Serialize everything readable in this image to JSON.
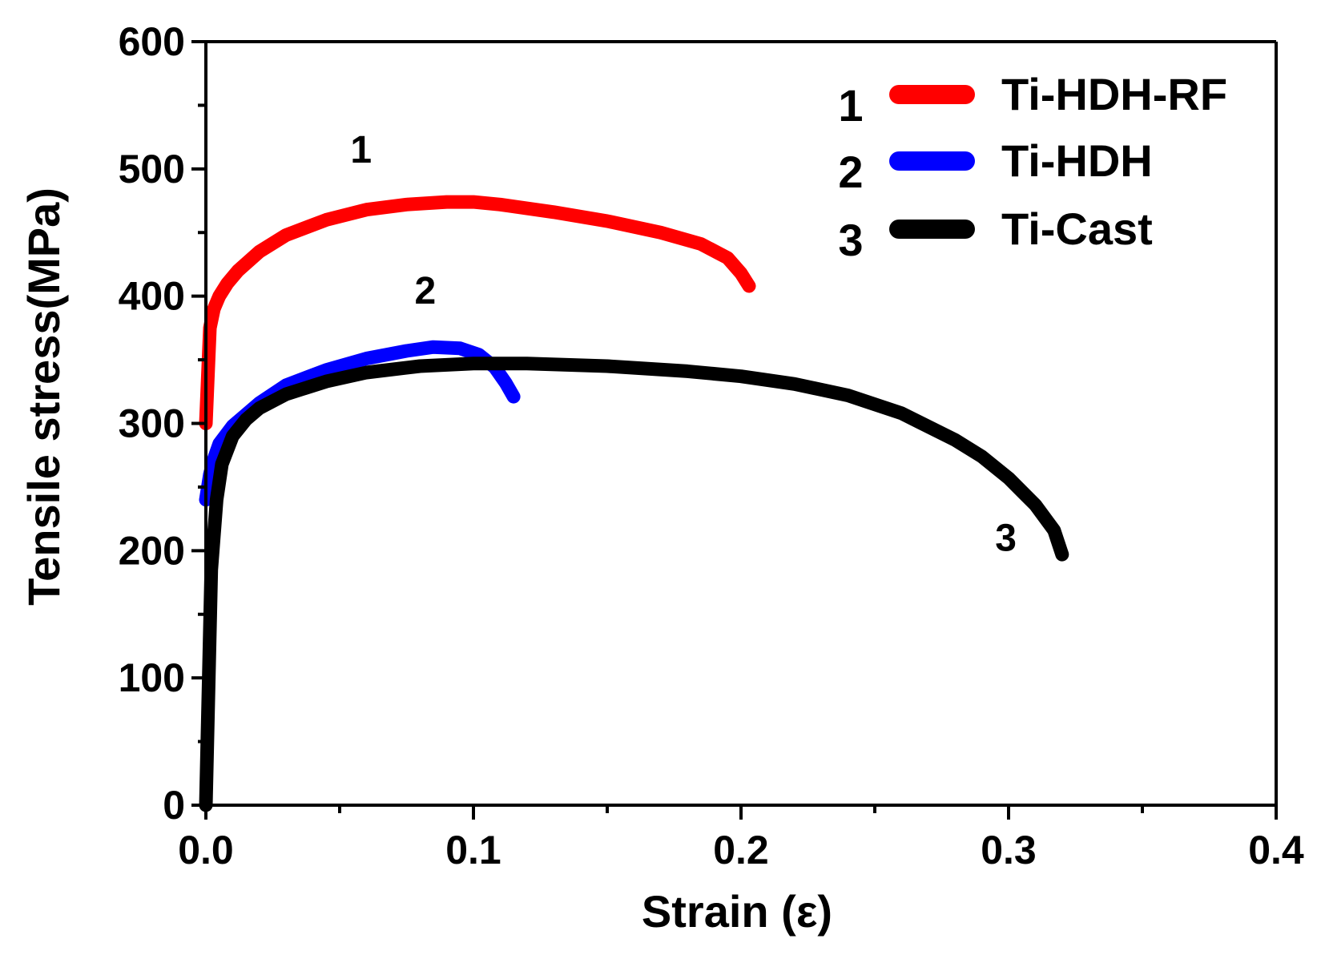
{
  "chart_data": {
    "type": "line",
    "title": "",
    "xlabel": "Strain (ε)",
    "ylabel": "Tensile stress(MPa)",
    "xlim": [
      0.0,
      0.4
    ],
    "ylim": [
      0,
      600
    ],
    "x_ticks": [
      0.0,
      0.1,
      0.2,
      0.3,
      0.4
    ],
    "x_tick_labels": [
      "0.0",
      "0.1",
      "0.2",
      "0.3",
      "0.4"
    ],
    "y_ticks": [
      0,
      100,
      200,
      300,
      400,
      500,
      600
    ],
    "y_tick_labels": [
      "0",
      "100",
      "200",
      "300",
      "400",
      "500",
      "600"
    ],
    "grid": false,
    "legend_position": "top-right",
    "series": [
      {
        "id": "1",
        "name": "Ti-HDH-RF",
        "color": "#ff0000",
        "x": [
          0.0,
          0.0015,
          0.003,
          0.005,
          0.008,
          0.012,
          0.02,
          0.03,
          0.045,
          0.06,
          0.075,
          0.09,
          0.1,
          0.11,
          0.13,
          0.15,
          0.17,
          0.185,
          0.195,
          0.2,
          0.203
        ],
        "y": [
          300,
          375,
          390,
          400,
          410,
          420,
          435,
          448,
          460,
          468,
          472,
          474,
          474,
          472,
          466,
          459,
          450,
          441,
          430,
          418,
          408
        ]
      },
      {
        "id": "2",
        "name": "Ti-HDH",
        "color": "#0000ff",
        "x": [
          0.0,
          0.0015,
          0.003,
          0.005,
          0.01,
          0.02,
          0.03,
          0.045,
          0.06,
          0.075,
          0.085,
          0.095,
          0.102,
          0.108,
          0.112,
          0.115
        ],
        "y": [
          240,
          260,
          272,
          284,
          298,
          316,
          330,
          342,
          351,
          357,
          360,
          359,
          354,
          344,
          332,
          321
        ]
      },
      {
        "id": "3",
        "name": "Ti-Cast",
        "color": "#000000",
        "x": [
          0.0,
          0.002,
          0.004,
          0.006,
          0.01,
          0.015,
          0.02,
          0.03,
          0.045,
          0.06,
          0.08,
          0.1,
          0.12,
          0.15,
          0.18,
          0.2,
          0.22,
          0.24,
          0.26,
          0.28,
          0.29,
          0.3,
          0.31,
          0.317,
          0.32
        ],
        "y": [
          0,
          185,
          240,
          268,
          290,
          303,
          312,
          323,
          333,
          340,
          345,
          347,
          347,
          345,
          341,
          337,
          331,
          322,
          308,
          287,
          274,
          257,
          236,
          216,
          197
        ]
      }
    ],
    "legend": [
      {
        "number": "1",
        "label": "Ti-HDH-RF",
        "color": "#ff0000"
      },
      {
        "number": "2",
        "label": "Ti-HDH",
        "color": "#0000ff"
      },
      {
        "number": "3",
        "label": "Ti-Cast",
        "color": "#000000"
      }
    ],
    "annotations": [
      {
        "text": "1",
        "x": 0.058,
        "y": 505
      },
      {
        "text": "2",
        "x": 0.082,
        "y": 394
      },
      {
        "text": "3",
        "x": 0.299,
        "y": 200
      }
    ]
  }
}
